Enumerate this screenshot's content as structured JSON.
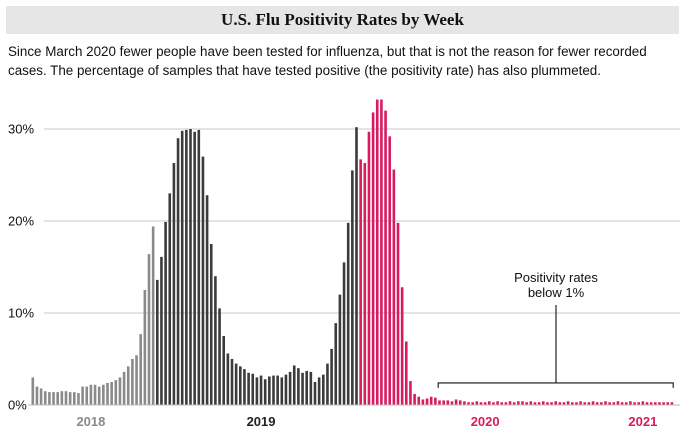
{
  "title": "U.S. Flu Positivity Rates by Week",
  "subtitle": "Since March 2020 fewer people have been tested for influenza, but that is not the reason for fewer recorded cases. The percentage of samples that have tested positive (the positivity rate) has also plummeted.",
  "colors": {
    "period_2018": "#8a8a8a",
    "period_2019": "#3b3b3b",
    "period_2020": "#d81b60",
    "axis_2018": "#8a8a8a",
    "axis_2019": "#222222",
    "axis_2020": "#d81b60",
    "grid": "#c8c8c8"
  },
  "chart_data": {
    "type": "bar",
    "ylabel": "",
    "xlabel": "",
    "ylim": [
      0,
      33
    ],
    "yticks": [
      0,
      10,
      20,
      30
    ],
    "ytick_labels": [
      "0%",
      "10%",
      "20%",
      "30%"
    ],
    "grid": true,
    "season_labels": [
      {
        "label": "2018",
        "color_key": "axis_2018",
        "center_index": 14
      },
      {
        "label": "2019",
        "color_key": "axis_2019",
        "center_index": 55
      },
      {
        "label": "2020",
        "color_key": "axis_2020",
        "center_index": 109
      },
      {
        "label": "2021",
        "color_key": "axis_2021_alias",
        "center_index": 147
      }
    ],
    "annotation": {
      "text_lines": [
        "Positivity rates",
        "below 1%"
      ],
      "start_index": 98,
      "end_index": 154,
      "value": 2.4
    },
    "series": [
      {
        "color_key": "period_2018",
        "start_index": 0,
        "values": [
          3.0,
          2.0,
          1.8,
          1.5,
          1.4,
          1.4,
          1.4,
          1.5,
          1.5,
          1.4,
          1.4,
          1.3,
          2.0,
          2.0,
          2.2,
          2.2,
          2.0,
          2.2,
          2.4,
          2.5,
          2.7,
          3.0,
          3.6,
          4.2,
          5.0,
          5.4,
          7.7,
          12.5,
          16.4,
          19.4
        ]
      },
      {
        "color_key": "period_2019",
        "start_index": 30,
        "values": [
          13.6,
          16.1,
          19.9,
          23.0,
          26.3,
          29.0,
          29.8,
          29.9,
          30.0,
          29.7,
          29.9,
          27.0,
          22.8,
          17.5,
          14.0,
          10.5,
          7.5,
          5.6,
          5.0,
          4.5,
          4.2,
          3.9,
          3.5,
          3.4,
          3.0,
          3.2,
          2.8,
          3.1,
          3.2,
          3.2,
          3.0,
          3.3,
          3.6,
          4.3,
          4.0,
          3.5,
          3.7,
          3.6,
          2.5,
          3.0,
          3.3,
          4.5,
          6.1,
          8.9,
          12.0,
          15.5,
          19.8,
          25.5,
          30.2
        ]
      },
      {
        "color_key": "period_2020",
        "start_index": 79,
        "values": [
          26.7,
          26.3,
          29.7,
          31.8,
          33.2,
          33.2,
          32.0,
          29.2,
          25.6,
          19.8,
          12.8,
          6.9,
          2.6,
          1.2,
          0.9,
          0.6,
          0.7,
          0.9,
          0.8,
          0.5,
          0.5,
          0.5,
          0.4,
          0.6,
          0.5,
          0.4,
          0.3,
          0.3,
          0.4,
          0.3,
          0.3,
          0.4,
          0.3,
          0.4,
          0.3,
          0.3,
          0.4,
          0.3,
          0.4,
          0.4,
          0.3,
          0.4,
          0.3,
          0.3,
          0.4,
          0.3,
          0.3,
          0.4,
          0.3,
          0.3,
          0.4,
          0.3,
          0.3,
          0.4,
          0.3,
          0.3,
          0.4,
          0.3,
          0.3,
          0.4,
          0.3,
          0.3,
          0.4,
          0.3,
          0.3,
          0.4,
          0.3,
          0.3,
          0.4,
          0.3,
          0.3,
          0.3,
          0.3,
          0.3,
          0.3,
          0.3
        ]
      }
    ]
  }
}
